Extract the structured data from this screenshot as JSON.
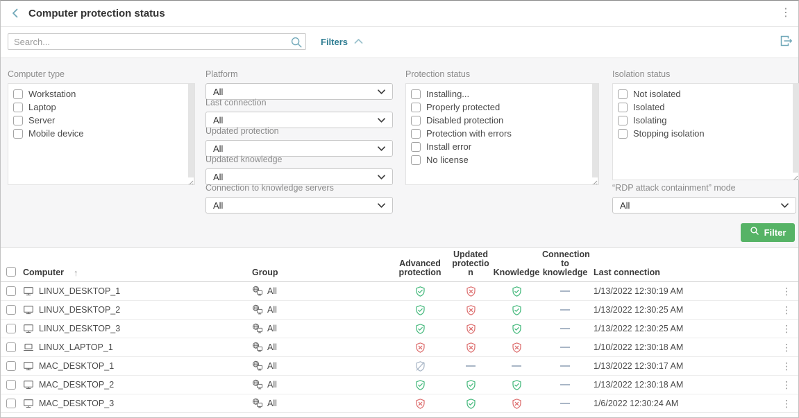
{
  "header": {
    "title": "Computer protection status",
    "back_icon": "chevron-left",
    "menu_icon": "kebab-vertical"
  },
  "toolbar": {
    "search_placeholder": "Search...",
    "filters_label": "Filters",
    "filters_chevron_icon": "chevron-up",
    "search_icon": "magnifier",
    "export_icon": "export-arrow"
  },
  "filters": {
    "computer_type": {
      "label": "Computer type",
      "options": [
        "Workstation",
        "Laptop",
        "Server",
        "Mobile device"
      ]
    },
    "platform": {
      "label": "Platform",
      "value": "All"
    },
    "last_connection": {
      "label": "Last connection",
      "value": "All"
    },
    "updated_protection": {
      "label": "Updated protection",
      "value": "All"
    },
    "updated_knowledge": {
      "label": "Updated knowledge",
      "value": "All"
    },
    "knowledge_servers": {
      "label": "Connection to knowledge servers",
      "value": "All"
    },
    "protection_status": {
      "label": "Protection status",
      "options": [
        "Installing...",
        "Properly protected",
        "Disabled protection",
        "Protection with errors",
        "Install error",
        "No license"
      ]
    },
    "isolation_status": {
      "label": "Isolation status",
      "options": [
        "Not isolated",
        "Isolated",
        "Isolating",
        "Stopping isolation"
      ]
    },
    "rdp_mode": {
      "label": "“RDP attack containment” mode",
      "value": "All"
    },
    "filter_button_label": "Filter"
  },
  "table": {
    "columns": {
      "computer": "Computer",
      "sort_icon": "arrow-up",
      "group": "Group",
      "advanced_protection": "Advanced\nprotection",
      "updated_protection": "Updated\nprotectio\nn",
      "knowledge": "Knowledge",
      "connection_to_knowledge": "Connection\nto\nknowledge",
      "last_connection": "Last connection"
    },
    "rows": [
      {
        "name": "LINUX_DESKTOP_1",
        "device": "desktop",
        "group": "All",
        "advanced_protection": "ok",
        "updated_protection": "error",
        "knowledge": "ok",
        "connection_to_knowledge": "none",
        "last_connection": "1/13/2022 12:30:19 AM"
      },
      {
        "name": "LINUX_DESKTOP_2",
        "device": "desktop",
        "group": "All",
        "advanced_protection": "ok",
        "updated_protection": "error",
        "knowledge": "ok",
        "connection_to_knowledge": "none",
        "last_connection": "1/13/2022 12:30:25 AM"
      },
      {
        "name": "LINUX_DESKTOP_3",
        "device": "desktop",
        "group": "All",
        "advanced_protection": "ok",
        "updated_protection": "error",
        "knowledge": "ok",
        "connection_to_knowledge": "none",
        "last_connection": "1/13/2022 12:30:25 AM"
      },
      {
        "name": "LINUX_LAPTOP_1",
        "device": "laptop",
        "group": "All",
        "advanced_protection": "error",
        "updated_protection": "error",
        "knowledge": "error",
        "connection_to_knowledge": "none",
        "last_connection": "1/10/2022 12:30:18 AM"
      },
      {
        "name": "MAC_DESKTOP_1",
        "device": "desktop",
        "group": "All",
        "advanced_protection": "disabled",
        "updated_protection": "none",
        "knowledge": "none",
        "connection_to_knowledge": "none",
        "last_connection": "1/13/2022 12:30:17 AM"
      },
      {
        "name": "MAC_DESKTOP_2",
        "device": "desktop",
        "group": "All",
        "advanced_protection": "ok",
        "updated_protection": "ok",
        "knowledge": "ok",
        "connection_to_knowledge": "none",
        "last_connection": "1/13/2022 12:30:18 AM"
      },
      {
        "name": "MAC_DESKTOP_3",
        "device": "desktop",
        "group": "All",
        "advanced_protection": "error",
        "updated_protection": "ok",
        "knowledge": "error",
        "connection_to_knowledge": "none",
        "last_connection": "1/6/2022 12:30:24 AM"
      }
    ]
  },
  "colors": {
    "accent_teal": "#2f7d92",
    "icon_teal": "#6fa7b8",
    "button_green": "#56b366",
    "status_ok": "#45b97c",
    "status_error": "#dd6f6f",
    "status_neutral": "#a9b6c6"
  }
}
